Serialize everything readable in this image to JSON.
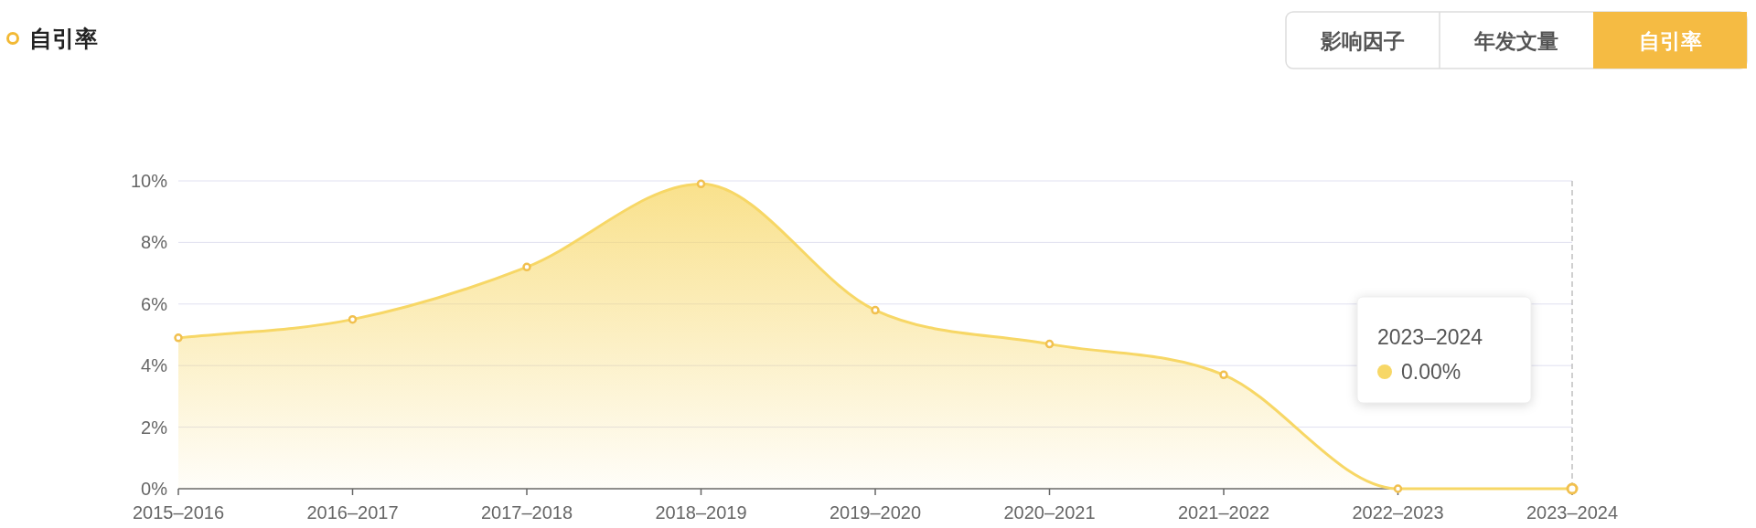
{
  "chart_data": {
    "type": "area",
    "title": "自引率",
    "categories": [
      "2015–2016",
      "2016–2017",
      "2017–2018",
      "2018–2019",
      "2019–2020",
      "2020–2021",
      "2021–2022",
      "2022–2023",
      "2023–2024"
    ],
    "series": [
      {
        "color": "#f7d766",
        "values": [
          4.9,
          5.5,
          7.2,
          9.9,
          5.8,
          4.7,
          3.7,
          0,
          0
        ]
      }
    ],
    "ylim": [
      0,
      10
    ],
    "yticks": [
      {
        "value": 0,
        "label": "0%"
      },
      {
        "value": 2,
        "label": "2%"
      },
      {
        "value": 4,
        "label": "4%"
      },
      {
        "value": 6,
        "label": "6%"
      },
      {
        "value": 8,
        "label": "8%"
      },
      {
        "value": 10,
        "label": "10%"
      }
    ],
    "grid": "y",
    "marker": "circle",
    "ref_lines": [
      {
        "axis": "x",
        "value": "2023–2024",
        "line_style": "dashed",
        "color": "#b0b0b0"
      }
    ],
    "annotations": [
      "影响因子",
      "年发文量",
      "自引率",
      "2023–2024",
      "0.00%"
    ]
  }
}
